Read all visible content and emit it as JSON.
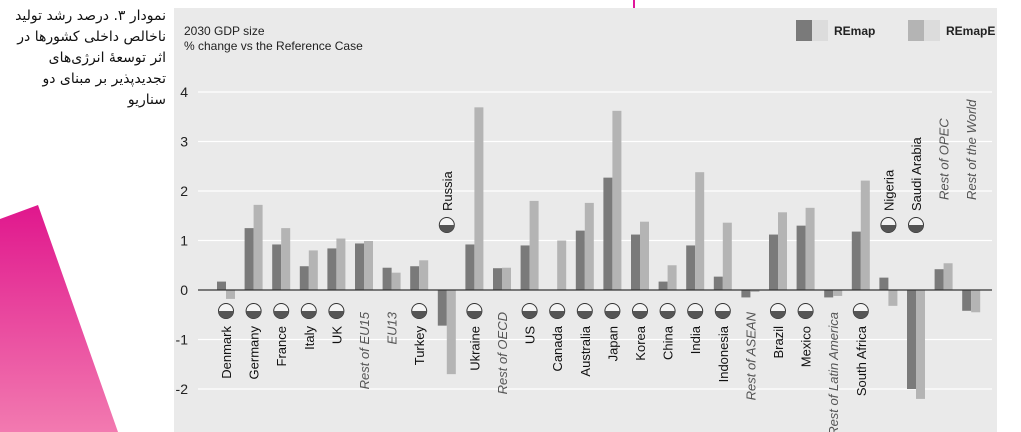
{
  "caption": "نمودار ۳. درصد رشد تولید ناخالص داخلی کشورها در اثر توسعهٔ انرژی‌های تجدیدپذیر بر مبنای دو سناریو",
  "chart_data": {
    "type": "bar",
    "title": "2030 GDP size",
    "subtitle": "% change vs the Reference Case",
    "ylim": [
      -2.25,
      4.3
    ],
    "yticks": [
      -2,
      -1,
      0,
      1,
      2,
      3,
      4
    ],
    "legend": "top-right",
    "colors": {
      "REmap": "#7a7a7a",
      "REmapE": "#b4b4b4",
      "grid": "#ffffff"
    },
    "series": [
      {
        "name": "REmap",
        "values": [
          0.17,
          1.25,
          0.92,
          0.48,
          0.84,
          0.94,
          0.45,
          0.48,
          -0.72,
          0.92,
          0.44,
          0.9,
          0.0,
          1.2,
          2.27,
          1.12,
          0.17,
          0.9,
          0.27,
          -0.15,
          1.12,
          1.3,
          -0.15,
          1.18,
          0.25,
          -2.0,
          0.42,
          -0.42
        ]
      },
      {
        "name": "REmapE",
        "values": [
          -0.18,
          1.72,
          1.25,
          0.8,
          1.04,
          0.99,
          0.35,
          0.6,
          -1.7,
          3.69,
          0.45,
          1.8,
          1.0,
          1.76,
          3.62,
          1.38,
          0.5,
          2.38,
          1.36,
          -0.04,
          1.57,
          1.66,
          -0.12,
          2.21,
          -0.32,
          -2.2,
          0.54,
          -0.45
        ]
      }
    ],
    "categories": [
      "Denmark",
      "Germany",
      "France",
      "Italy",
      "UK",
      "Rest of EU15",
      "EU13",
      "Turkey",
      "Russia",
      "Ukraine",
      "Rest of OECD",
      "US",
      "Canada",
      "Australia",
      "Japan",
      "Korea",
      "China",
      "India",
      "Indonesia",
      "Rest of ASEAN",
      "Brazil",
      "Mexico",
      "Rest of Latin America",
      "South Africa",
      "Nigeria",
      "Saudi Arabia",
      "Rest of OPEC",
      "Rest of the World"
    ],
    "category_styles": [
      "country",
      "country",
      "country",
      "country",
      "country",
      "region",
      "region",
      "country",
      "country",
      "country",
      "region",
      "country",
      "country",
      "country",
      "country",
      "country",
      "country",
      "country",
      "country",
      "region",
      "country",
      "country",
      "region",
      "country",
      "country",
      "country",
      "region",
      "region"
    ],
    "flag_icons": [
      "denmark-flag-icon",
      "germany-flag-icon",
      "france-flag-icon",
      "italy-flag-icon",
      "uk-flag-icon",
      "",
      "",
      "turkey-flag-icon",
      "russia-flag-icon",
      "ukraine-flag-icon",
      "",
      "us-flag-icon",
      "canada-flag-icon",
      "australia-flag-icon",
      "japan-flag-icon",
      "korea-flag-icon",
      "china-flag-icon",
      "india-flag-icon",
      "indonesia-flag-icon",
      "",
      "brazil-flag-icon",
      "mexico-flag-icon",
      "",
      "south-africa-flag-icon",
      "nigeria-flag-icon",
      "saudi-arabia-flag-icon",
      "",
      ""
    ]
  }
}
